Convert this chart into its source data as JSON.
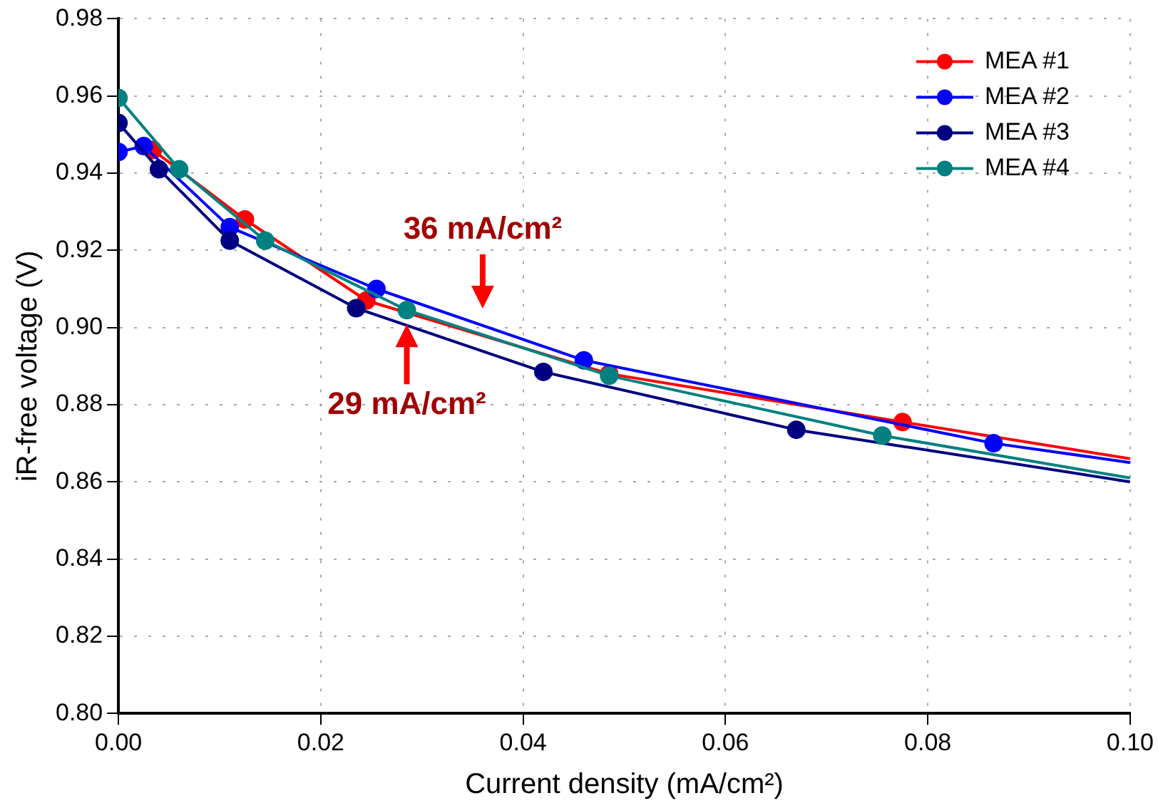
{
  "chart_data": {
    "type": "line",
    "xlabel": "Current density (mA/cm²)",
    "ylabel": "iR-free voltage (V)",
    "xlim": [
      0,
      0.1
    ],
    "xticks": [
      {
        "value": 0,
        "label": "0.00"
      },
      {
        "value": 0.02,
        "label": "0.02"
      },
      {
        "value": 0.04,
        "label": "0.04"
      },
      {
        "value": 0.06,
        "label": "0.06"
      },
      {
        "value": 0.08,
        "label": "0.08"
      },
      {
        "value": 0.1,
        "label": "0.10"
      }
    ],
    "ylim": [
      0.8,
      0.98
    ],
    "yticks": [
      {
        "value": 0.8,
        "label": "0.80"
      },
      0.82,
      0.84,
      0.86,
      0.88,
      {
        "value": 0.9,
        "label": "0.90"
      },
      0.92,
      0.94,
      0.96,
      0.98
    ],
    "grid": true,
    "legend": "top right",
    "marker": "circle",
    "line_style": "solid",
    "series": [
      {
        "name": "MEA #1",
        "color": "#ff0000",
        "x": [
          0.0034,
          0.0125,
          0.0245,
          0.0485,
          0.0775,
          0.1
        ],
        "values": [
          0.946,
          0.928,
          0.907,
          0.888,
          0.8755,
          0.866
        ]
      },
      {
        "name": "MEA #2",
        "color": "#0000ff",
        "x": [
          0,
          0.0025,
          0.011,
          0.0255,
          0.046,
          0.0865,
          0.1
        ],
        "values": [
          0.9455,
          0.947,
          0.926,
          0.91,
          0.8915,
          0.87,
          0.865
        ]
      },
      {
        "name": "MEA #3",
        "color": "#000080",
        "x": [
          0,
          0.004,
          0.011,
          0.0235,
          0.042,
          0.067,
          0.1
        ],
        "values": [
          0.953,
          0.941,
          0.9225,
          0.905,
          0.8885,
          0.8735,
          0.86
        ]
      },
      {
        "name": "MEA #4",
        "color": "#008080",
        "x": [
          0,
          0.006,
          0.0145,
          0.0285,
          0.0485,
          0.0755,
          0.1
        ],
        "values": [
          0.9595,
          0.941,
          0.9225,
          0.9045,
          0.8875,
          0.872,
          0.861
        ]
      }
    ],
    "annotations": [
      {
        "text": "36 mA/cm²",
        "x": 0.036,
        "y": 0.9005
      },
      {
        "text": "29 mA/cm²",
        "x": 0.0285,
        "y": 0.9045
      }
    ]
  }
}
